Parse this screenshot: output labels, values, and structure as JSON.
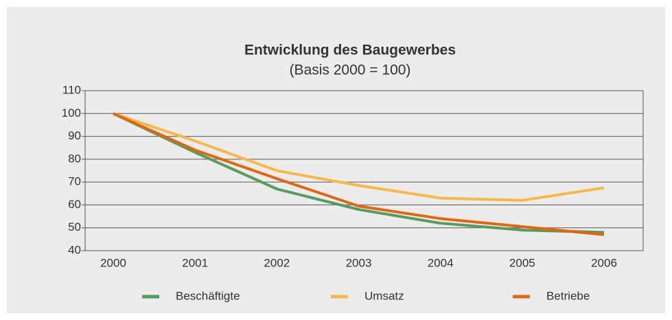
{
  "chart_data": {
    "type": "line",
    "title": "Entwicklung des Baugewerbes",
    "subtitle": "(Basis 2000 = 100)",
    "categories": [
      "2000",
      "2001",
      "2002",
      "2003",
      "2004",
      "2005",
      "2006"
    ],
    "series": [
      {
        "name": "Beschäftigte",
        "color": "#559c5e",
        "values": [
          100,
          83,
          67,
          58,
          52,
          49,
          48
        ]
      },
      {
        "name": "Umsatz",
        "color": "#f8b84a",
        "values": [
          100,
          88,
          75,
          68.5,
          63,
          62,
          67.5
        ]
      },
      {
        "name": "Betriebe",
        "color": "#e3660f",
        "values": [
          100,
          84,
          71.5,
          59.5,
          54,
          50.5,
          47
        ]
      }
    ],
    "ylim": [
      40,
      110
    ],
    "yticks": [
      40,
      50,
      60,
      70,
      80,
      90,
      100,
      110
    ],
    "grid": true,
    "legend": "bottom"
  }
}
